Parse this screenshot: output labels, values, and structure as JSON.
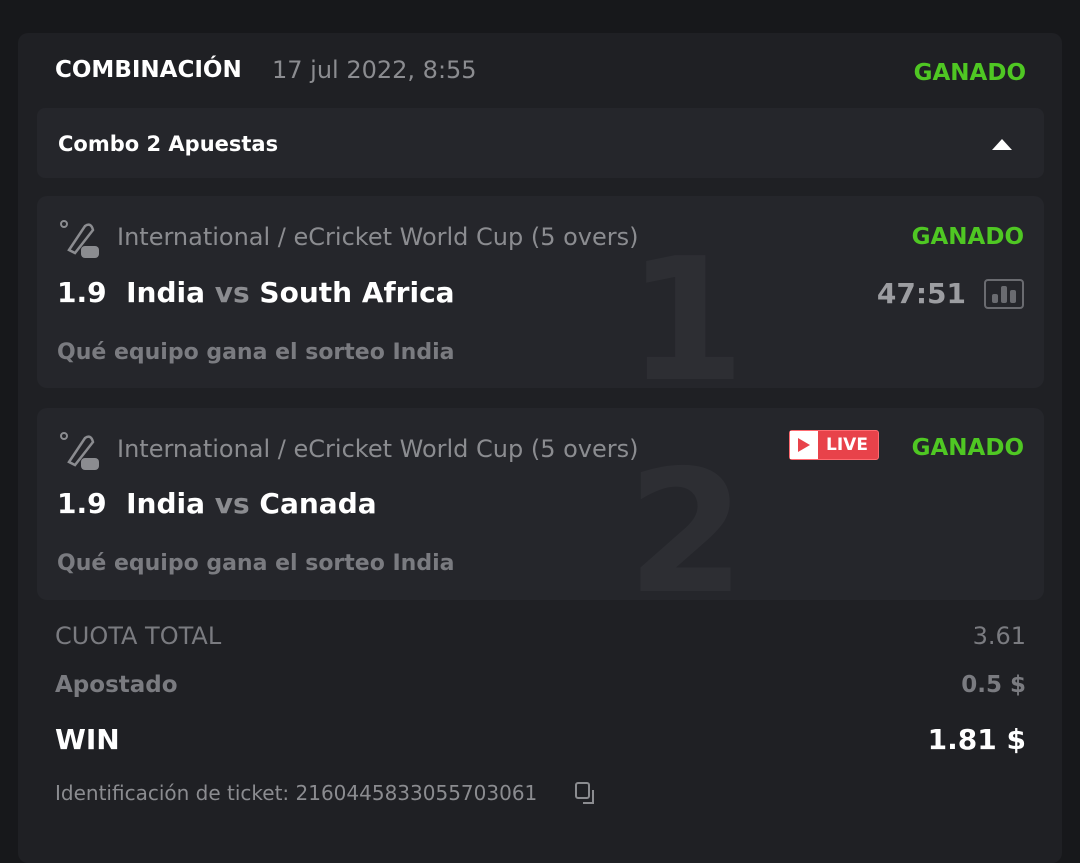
{
  "header": {
    "type": "COMBINACIÓN",
    "date": "17 jul 2022, 8:55",
    "status": "GANADO"
  },
  "combo": {
    "label": "Combo 2 Apuestas",
    "toggle_icon": "caret-up-icon"
  },
  "legs": [
    {
      "index": "1",
      "league": "International / eCricket World Cup (5 overs)",
      "status": "GANADO",
      "odds": "1.9",
      "home": "India",
      "vs": "vs",
      "away": "South Africa",
      "time": "47:51",
      "market": "Qué equipo gana el sorteo India"
    },
    {
      "index": "2",
      "league": "International / eCricket World Cup (5 overs)",
      "status": "GANADO",
      "live": "LIVE",
      "odds": "1.9",
      "home": "India",
      "vs": "vs",
      "away": "Canada",
      "market": "Qué equipo gana el sorteo India"
    }
  ],
  "summary": {
    "total_odds_label": "CUOTA TOTAL",
    "total_odds": "3.61",
    "stake_label": "Apostado",
    "stake": "0.5 $",
    "win_label": "WIN",
    "win": "1.81 $",
    "ticket_label": "Identificación de ticket: 2160445833055703061"
  },
  "colors": {
    "win": "#4fc723",
    "live": "#e8424a",
    "background": "#17181b",
    "card": "#1f2024"
  }
}
